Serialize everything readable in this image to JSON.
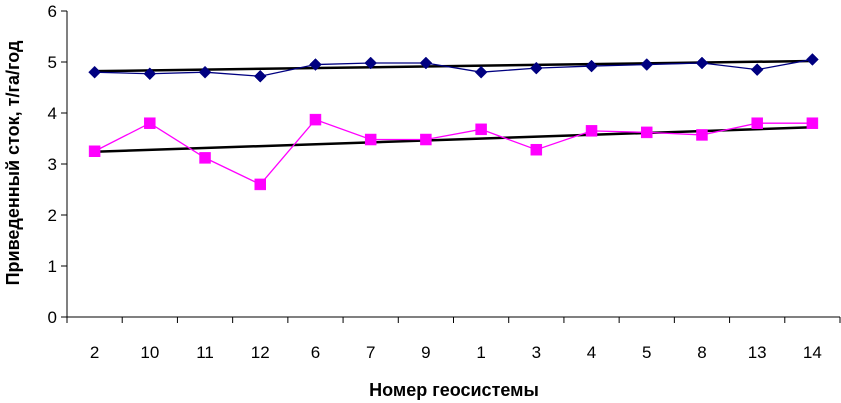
{
  "chart_data": {
    "type": "line",
    "xlabel": "Номер геосистемы",
    "ylabel": "Приведенный сток, т/га/год",
    "categories": [
      "2",
      "10",
      "11",
      "12",
      "6",
      "7",
      "9",
      "1",
      "3",
      "4",
      "5",
      "8",
      "13",
      "14"
    ],
    "ylim": [
      0,
      6
    ],
    "yticks": [
      "0",
      "1",
      "2",
      "3",
      "4",
      "5",
      "6"
    ],
    "grid": false,
    "legend": "none",
    "series": [
      {
        "color": "#000080",
        "marker": "diamond",
        "values": [
          4.8,
          4.77,
          4.8,
          4.72,
          4.95,
          4.98,
          4.98,
          4.8,
          4.88,
          4.92,
          4.95,
          4.98,
          4.85,
          5.05
        ],
        "trendline": {
          "start": 4.82,
          "end": 5.02,
          "color": "#000000"
        }
      },
      {
        "color": "#FF00FF",
        "marker": "square",
        "values": [
          3.25,
          3.8,
          3.12,
          2.6,
          3.87,
          3.48,
          3.48,
          3.68,
          3.28,
          3.65,
          3.62,
          3.57,
          3.8,
          3.8
        ],
        "trendline": {
          "start": 3.24,
          "end": 3.72,
          "color": "#000000"
        }
      }
    ]
  }
}
